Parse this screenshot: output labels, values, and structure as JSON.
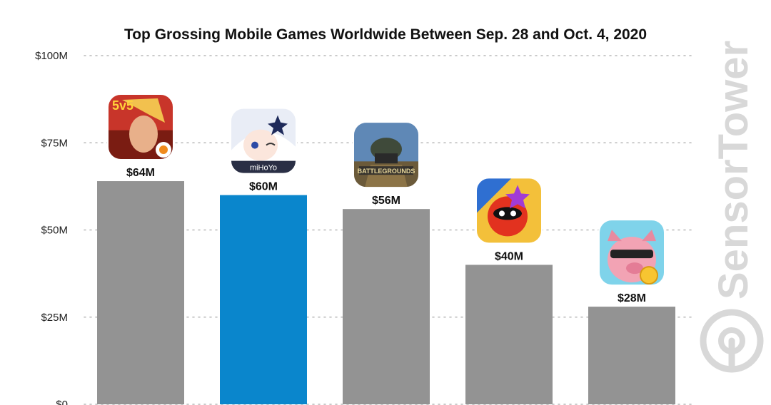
{
  "chart_data": {
    "type": "bar",
    "title": "Top Grossing Mobile Games Worldwide Between Sep. 28 and Oct. 4, 2020",
    "ylim": [
      0,
      100
    ],
    "yticks": [
      {
        "value": 0,
        "label": "$0"
      },
      {
        "value": 25,
        "label": "$25M"
      },
      {
        "value": 50,
        "label": "$50M"
      },
      {
        "value": 75,
        "label": "$75M"
      },
      {
        "value": 100,
        "label": "$100M"
      }
    ],
    "grid": true,
    "bars": [
      {
        "value": 64,
        "label": "$64M",
        "color": "#939393",
        "icon": "honor-of-kings-icon",
        "icon_text": "5v5"
      },
      {
        "value": 60,
        "label": "$60M",
        "color": "#0a86cc",
        "icon": "genshin-impact-icon",
        "icon_text": "miHoYo"
      },
      {
        "value": 56,
        "label": "$56M",
        "color": "#939393",
        "icon": "pubg-mobile-icon",
        "icon_text": "BATTLEGROUNDS"
      },
      {
        "value": 40,
        "label": "$40M",
        "color": "#939393",
        "icon": "monster-strike-icon",
        "icon_text": ""
      },
      {
        "value": 28,
        "label": "$28M",
        "color": "#939393",
        "icon": "coin-master-icon",
        "icon_text": ""
      }
    ]
  },
  "watermark": {
    "brand_text": "SensorTower",
    "icon": "sensor-tower-logo-icon"
  }
}
